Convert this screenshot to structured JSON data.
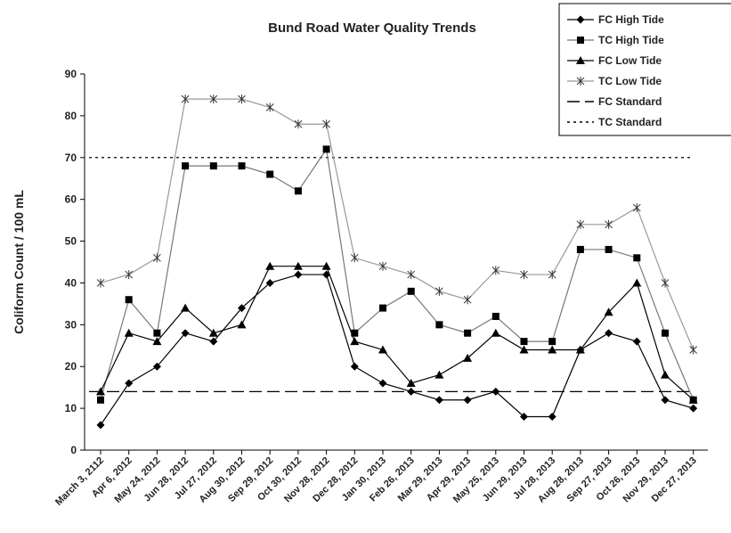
{
  "chart_data": {
    "type": "line",
    "title": "Bund Road Water Quality Trends",
    "y_label": "Coliform Count / 100 mL",
    "categories": [
      "March 3, 2112",
      "Apr 6, 2012",
      "May 24, 2012",
      "Jun 28, 2012",
      "Jul 27, 2012",
      "Aug 30, 2012",
      "Sep 29, 2012",
      "Oct 30, 2012",
      "Nov 28, 2012",
      "Dec 28, 2012",
      "Jan 30, 2013",
      "Feb 26, 2013",
      "Mar 29, 2013",
      "Apr 29, 2013",
      "May 25, 2013",
      "Jun 29, 2013",
      "Jul 28, 2013",
      "Aug 28, 2013",
      "Sep 27, 2013",
      "Oct 26, 2013",
      "Nov 29, 2013",
      "Dec 27, 2013"
    ],
    "series": [
      {
        "name": "FC High Tide",
        "color": "#000000",
        "marker": "diamond",
        "values": [
          6,
          16,
          20,
          28,
          26,
          34,
          40,
          42,
          42,
          20,
          16,
          14,
          12,
          12,
          14,
          8,
          8,
          24,
          28,
          26,
          12,
          10
        ]
      },
      {
        "name": "TC High Tide",
        "color": "#777777",
        "marker": "square",
        "values": [
          12,
          36,
          28,
          68,
          68,
          68,
          66,
          62,
          72,
          28,
          34,
          38,
          30,
          28,
          32,
          26,
          26,
          48,
          48,
          46,
          28,
          12
        ]
      },
      {
        "name": "FC Low Tide",
        "color": "#000000",
        "marker": "triangle",
        "values": [
          14,
          28,
          26,
          34,
          28,
          30,
          44,
          44,
          44,
          26,
          24,
          16,
          18,
          22,
          28,
          24,
          24,
          24,
          33,
          40,
          18,
          12
        ]
      },
      {
        "name": "TC Low Tide",
        "color": "#999999",
        "marker": "x",
        "values": [
          40,
          42,
          46,
          84,
          84,
          84,
          82,
          78,
          78,
          46,
          44,
          42,
          38,
          36,
          43,
          42,
          42,
          54,
          54,
          58,
          40,
          24
        ]
      }
    ],
    "reference_lines": [
      {
        "name": "FC Standard",
        "value": 14,
        "dash": "14 6"
      },
      {
        "name": "TC Standard",
        "value": 70,
        "dash": "3 4"
      }
    ],
    "ylim": [
      0,
      90
    ],
    "yticks": [
      0,
      10,
      20,
      30,
      40,
      50,
      60,
      70,
      80,
      90
    ],
    "legend": "top-right"
  }
}
